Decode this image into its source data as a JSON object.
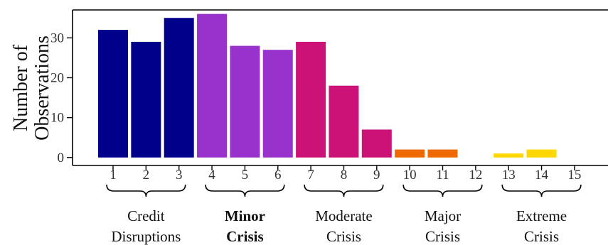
{
  "chart_data": {
    "type": "bar",
    "categories": [
      "1",
      "2",
      "3",
      "4",
      "5",
      "6",
      "7",
      "8",
      "9",
      "10",
      "11",
      "12",
      "13",
      "14",
      "15"
    ],
    "values": [
      32,
      29,
      35,
      36,
      28,
      27,
      29,
      18,
      7,
      2,
      2,
      0,
      1,
      2,
      0
    ],
    "bar_colors": [
      "#00008b",
      "#00008b",
      "#00008b",
      "#9932cc",
      "#9932cc",
      "#9932cc",
      "#cc1177",
      "#cc1177",
      "#cc1177",
      "#ee6a00",
      "#ee6a00",
      "#ee6a00",
      "#ffd700",
      "#ffd700",
      "#ffd700"
    ],
    "ylabel_lines": [
      "Number of",
      "Observations"
    ],
    "xlabel": "",
    "ylim": [
      -2,
      37
    ],
    "yticks": [
      0,
      10,
      20,
      30
    ],
    "grid": false,
    "groups": [
      {
        "lines": [
          "Credit",
          "Disruptions"
        ],
        "from": 1,
        "to": 3,
        "bold": false
      },
      {
        "lines": [
          "Minor",
          "Crisis"
        ],
        "from": 4,
        "to": 6,
        "bold": true
      },
      {
        "lines": [
          "Moderate",
          "Crisis"
        ],
        "from": 7,
        "to": 9,
        "bold": false
      },
      {
        "lines": [
          "Major",
          "Crisis"
        ],
        "from": 10,
        "to": 12,
        "bold": false
      },
      {
        "lines": [
          "Extreme",
          "Crisis"
        ],
        "from": 13,
        "to": 15,
        "bold": false
      }
    ]
  }
}
